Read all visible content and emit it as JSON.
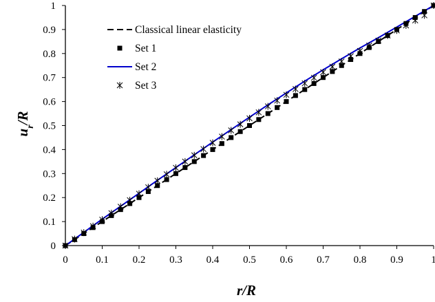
{
  "chart_data": {
    "type": "line",
    "title": "",
    "xlabel": "r/R",
    "ylabel": "u_r/R",
    "xlim": [
      0,
      1
    ],
    "ylim": [
      0,
      1
    ],
    "x_ticks": [
      "0",
      "0.1",
      "0.2",
      "0.3",
      "0.4",
      "0.5",
      "0.6",
      "0.7",
      "0.8",
      "0.9",
      "1"
    ],
    "y_ticks": [
      "0",
      "0.1",
      "0.2",
      "0.3",
      "0.4",
      "0.5",
      "0.6",
      "0.7",
      "0.8",
      "0.9",
      "1"
    ],
    "grid": false,
    "legend_position": "top-left",
    "series": [
      {
        "name": "Classical linear elasticity",
        "style": "dashed-line",
        "color": "#000000",
        "x": [
          0,
          1
        ],
        "y": [
          0,
          1
        ]
      },
      {
        "name": "Set 1",
        "style": "square-markers",
        "color": "#000000",
        "x": [
          0,
          0.025,
          0.05,
          0.075,
          0.1,
          0.125,
          0.15,
          0.175,
          0.2,
          0.225,
          0.25,
          0.275,
          0.3,
          0.325,
          0.35,
          0.375,
          0.4,
          0.425,
          0.45,
          0.475,
          0.5,
          0.525,
          0.55,
          0.575,
          0.6,
          0.625,
          0.65,
          0.675,
          0.7,
          0.725,
          0.75,
          0.775,
          0.8,
          0.825,
          0.85,
          0.875,
          0.9,
          0.925,
          0.95,
          0.975,
          1
        ],
        "y": [
          0,
          0.025,
          0.05,
          0.075,
          0.1,
          0.125,
          0.15,
          0.175,
          0.2,
          0.225,
          0.25,
          0.275,
          0.3,
          0.325,
          0.35,
          0.375,
          0.4,
          0.425,
          0.45,
          0.475,
          0.5,
          0.525,
          0.55,
          0.575,
          0.6,
          0.625,
          0.65,
          0.675,
          0.7,
          0.725,
          0.75,
          0.775,
          0.8,
          0.825,
          0.85,
          0.875,
          0.9,
          0.925,
          0.95,
          0.975,
          1
        ]
      },
      {
        "name": "Set 2",
        "style": "solid-line",
        "color": "#0000cc",
        "x": [
          0,
          0.05,
          0.1,
          0.15,
          0.2,
          0.25,
          0.3,
          0.35,
          0.4,
          0.45,
          0.5,
          0.55,
          0.6,
          0.65,
          0.7,
          0.75,
          0.8,
          0.85,
          0.9,
          0.95,
          1
        ],
        "y": [
          0,
          0.055,
          0.11,
          0.164,
          0.218,
          0.272,
          0.325,
          0.378,
          0.431,
          0.483,
          0.535,
          0.586,
          0.636,
          0.685,
          0.732,
          0.778,
          0.823,
          0.866,
          0.91,
          0.955,
          1
        ]
      },
      {
        "name": "Set 3",
        "style": "asterisk-markers",
        "color": "#000000",
        "x": [
          0,
          0.025,
          0.05,
          0.075,
          0.1,
          0.125,
          0.15,
          0.175,
          0.2,
          0.225,
          0.25,
          0.275,
          0.3,
          0.325,
          0.35,
          0.375,
          0.4,
          0.425,
          0.45,
          0.475,
          0.5,
          0.525,
          0.55,
          0.575,
          0.6,
          0.625,
          0.65,
          0.675,
          0.7,
          0.725,
          0.75,
          0.775,
          0.8,
          0.825,
          0.85,
          0.875,
          0.9,
          0.925,
          0.95,
          0.975,
          1
        ],
        "y": [
          0,
          0.027,
          0.054,
          0.081,
          0.108,
          0.135,
          0.162,
          0.189,
          0.216,
          0.243,
          0.27,
          0.297,
          0.324,
          0.35,
          0.376,
          0.402,
          0.428,
          0.454,
          0.48,
          0.505,
          0.53,
          0.555,
          0.58,
          0.604,
          0.628,
          0.652,
          0.676,
          0.699,
          0.722,
          0.745,
          0.767,
          0.789,
          0.811,
          0.833,
          0.854,
          0.875,
          0.896,
          0.917,
          0.938,
          0.959,
          1
        ]
      }
    ]
  }
}
